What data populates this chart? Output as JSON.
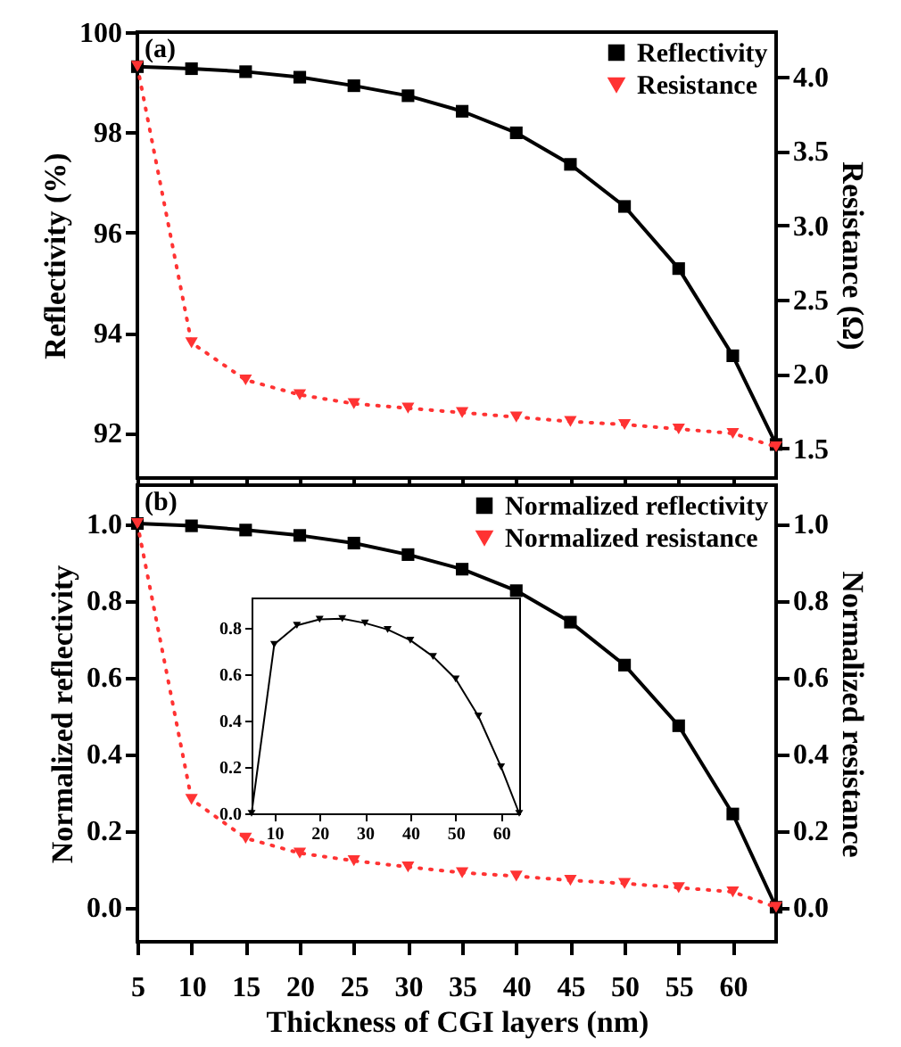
{
  "chart_data": [
    {
      "type": "line",
      "ylabel": "Reflectivity (%)",
      "y2label": "Resistance (Ω)",
      "annotations": [
        "(a)"
      ],
      "legend": "top right",
      "tick_labels": "y",
      "x": [
        5,
        10,
        15,
        20,
        25,
        30,
        35,
        40,
        45,
        50,
        55,
        60,
        64
      ],
      "xlim": [
        5,
        64
      ],
      "xticks": [
        5,
        10,
        15,
        20,
        25,
        30,
        35,
        40,
        45,
        50,
        55,
        60
      ],
      "ylim": [
        91.1,
        100
      ],
      "yticks": [
        92,
        94,
        96,
        98,
        100
      ],
      "y2lim": [
        1.3,
        4.3
      ],
      "y2ticks": [
        {
          "value": 1.5,
          "label": "1.5"
        },
        {
          "value": 2,
          "label": "2.0"
        },
        {
          "value": 2.5,
          "label": "2.5"
        },
        {
          "value": 3,
          "label": "3.0"
        },
        {
          "value": 3.5,
          "label": "3.5"
        },
        {
          "value": 4,
          "label": "4.0"
        }
      ],
      "series": [
        {
          "name": "Reflectivity",
          "color": "#000000",
          "marker": "square",
          "line_style": "solid",
          "values": [
            99.31,
            99.27,
            99.21,
            99.1,
            98.93,
            98.73,
            98.42,
            97.99,
            97.36,
            96.52,
            95.28,
            93.54,
            91.77
          ]
        },
        {
          "name": "Resistance",
          "color": "#ff3333",
          "marker": "triangle",
          "line_style": "dotted",
          "axis": "y2",
          "values": [
            4.07,
            2.21,
            1.96,
            1.86,
            1.8,
            1.77,
            1.74,
            1.71,
            1.68,
            1.66,
            1.63,
            1.6,
            1.51
          ]
        }
      ]
    },
    {
      "type": "line",
      "xlabel": "Thickness of CGI layers (nm)",
      "ylabel": "Normalized reflectivity",
      "y2label": "Normalized resistance",
      "annotations": [
        "(b)"
      ],
      "legend": "top right",
      "x": [
        5,
        10,
        15,
        20,
        25,
        30,
        35,
        40,
        45,
        50,
        55,
        60,
        64
      ],
      "xlim": [
        5,
        64
      ],
      "xticks": [
        5,
        10,
        15,
        20,
        25,
        30,
        35,
        40,
        45,
        50,
        55,
        60
      ],
      "ylim": [
        -0.09,
        1.1
      ],
      "yticks": [
        {
          "value": 0,
          "label": "0.0"
        },
        {
          "value": 0.2,
          "label": "0.2"
        },
        {
          "value": 0.4,
          "label": "0.4"
        },
        {
          "value": 0.6,
          "label": "0.6"
        },
        {
          "value": 0.8,
          "label": "0.8"
        },
        {
          "value": 1,
          "label": "1.0"
        }
      ],
      "y2lim": [
        -0.09,
        1.1
      ],
      "y2ticks": [
        {
          "value": 0,
          "label": "0.0"
        },
        {
          "value": 0.2,
          "label": "0.2"
        },
        {
          "value": 0.4,
          "label": "0.4"
        },
        {
          "value": 0.6,
          "label": "0.6"
        },
        {
          "value": 0.8,
          "label": "0.8"
        },
        {
          "value": 1,
          "label": "1.0"
        }
      ],
      "series": [
        {
          "name": "Normalized reflectivity",
          "color": "#000000",
          "marker": "square",
          "line_style": "solid",
          "values": [
            1.0,
            0.994,
            0.983,
            0.969,
            0.949,
            0.919,
            0.881,
            0.825,
            0.743,
            0.631,
            0.473,
            0.243,
            0.0
          ]
        },
        {
          "name": "Normalized resistance",
          "color": "#ff3333",
          "marker": "triangle",
          "line_style": "dotted",
          "axis": "y2",
          "values": [
            1.0,
            0.281,
            0.18,
            0.141,
            0.121,
            0.105,
            0.09,
            0.081,
            0.07,
            0.062,
            0.051,
            0.04,
            0.0
          ]
        }
      ]
    },
    {
      "type": "line",
      "x": [
        5,
        10,
        15,
        20,
        25,
        30,
        35,
        40,
        45,
        50,
        55,
        60,
        64
      ],
      "xlim": [
        5,
        64
      ],
      "xticks": [
        10,
        20,
        30,
        40,
        50,
        60
      ],
      "ylim": [
        0,
        0.93
      ],
      "yticks": [
        {
          "value": 0,
          "label": "0.0"
        },
        {
          "value": 0.2,
          "label": "0.2"
        },
        {
          "value": 0.4,
          "label": "0.4"
        },
        {
          "value": 0.6,
          "label": "0.6"
        },
        {
          "value": 0.8,
          "label": "0.8"
        }
      ],
      "series": [
        {
          "color": "#000000",
          "marker": "triangle",
          "line_style": "solid",
          "values": [
            0,
            0.728,
            0.81,
            0.836,
            0.839,
            0.82,
            0.792,
            0.746,
            0.676,
            0.579,
            0.419,
            0.2,
            0
          ]
        }
      ]
    }
  ]
}
